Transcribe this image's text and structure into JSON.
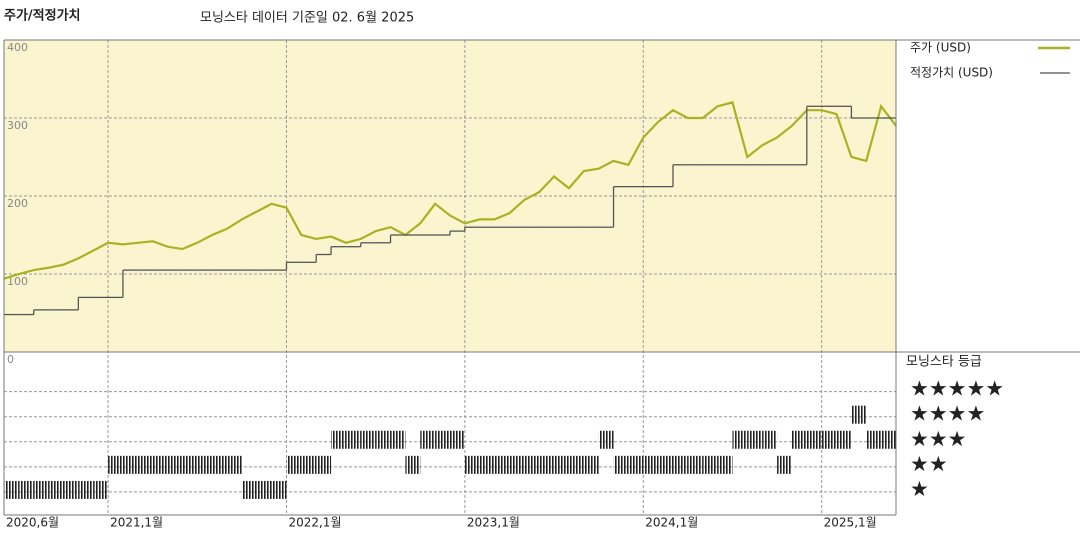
{
  "header": {
    "title": "주가/적정가치",
    "subtitle": "모닝스타 데이터 기준일 02. 6월 2025"
  },
  "chart_data": [
    {
      "type": "line",
      "x": [
        "2020-06",
        "2020-07",
        "2020-08",
        "2020-09",
        "2020-10",
        "2020-11",
        "2020-12",
        "2021-01",
        "2021-02",
        "2021-03",
        "2021-04",
        "2021-05",
        "2021-06",
        "2021-07",
        "2021-08",
        "2021-09",
        "2021-10",
        "2021-11",
        "2021-12",
        "2022-01",
        "2022-02",
        "2022-03",
        "2022-04",
        "2022-05",
        "2022-06",
        "2022-07",
        "2022-08",
        "2022-09",
        "2022-10",
        "2022-11",
        "2022-12",
        "2023-01",
        "2023-02",
        "2023-03",
        "2023-04",
        "2023-05",
        "2023-06",
        "2023-07",
        "2023-08",
        "2023-09",
        "2023-10",
        "2023-11",
        "2023-12",
        "2024-01",
        "2024-02",
        "2024-03",
        "2024-04",
        "2024-05",
        "2024-06",
        "2024-07",
        "2024-08",
        "2024-09",
        "2024-10",
        "2024-11",
        "2024-12",
        "2025-01",
        "2025-02",
        "2025-03",
        "2025-04",
        "2025-05",
        "2025-06"
      ],
      "series": [
        {
          "name": "주가 (USD)",
          "color": "#a9b224",
          "values": [
            94,
            100,
            105,
            108,
            112,
            120,
            130,
            140,
            138,
            140,
            142,
            135,
            132,
            140,
            150,
            158,
            170,
            180,
            190,
            185,
            150,
            145,
            148,
            140,
            145,
            155,
            160,
            150,
            165,
            190,
            175,
            165,
            170,
            170,
            178,
            195,
            205,
            225,
            210,
            232,
            235,
            245,
            240,
            275,
            295,
            310,
            300,
            300,
            315,
            320,
            250,
            265,
            275,
            290,
            310,
            310,
            305,
            250,
            245,
            315,
            290
          ]
        },
        {
          "name": "적정가치 (USD)",
          "color": "#555555",
          "step": true,
          "values": [
            48,
            48,
            54,
            54,
            54,
            70,
            70,
            70,
            105,
            105,
            105,
            105,
            105,
            105,
            105,
            105,
            105,
            105,
            105,
            115,
            115,
            125,
            135,
            135,
            140,
            140,
            150,
            150,
            150,
            150,
            155,
            160,
            160,
            160,
            160,
            160,
            160,
            160,
            160,
            160,
            160,
            212,
            212,
            212,
            212,
            240,
            240,
            240,
            240,
            240,
            240,
            240,
            240,
            240,
            315,
            315,
            315,
            300,
            300,
            300,
            300
          ]
        }
      ],
      "xlim": [
        "2020-06",
        "2025-06"
      ],
      "xticks": [
        {
          "value": "2020-06",
          "label": "2020,6월"
        },
        {
          "value": "2021-01",
          "label": "2021,1월"
        },
        {
          "value": "2022-01",
          "label": "2022,1월"
        },
        {
          "value": "2023-01",
          "label": "2023,1월"
        },
        {
          "value": "2024-01",
          "label": "2024,1월"
        },
        {
          "value": "2025-01",
          "label": "2025,1월"
        }
      ],
      "ylim": [
        0,
        400
      ],
      "yticks": [
        0,
        100,
        200,
        300,
        400
      ],
      "grid": true
    },
    {
      "type": "rating-strip",
      "title": "모닝스타 등급",
      "x": [
        "2020-06",
        "2020-07",
        "2020-08",
        "2020-09",
        "2020-10",
        "2020-11",
        "2020-12",
        "2021-01",
        "2021-02",
        "2021-03",
        "2021-04",
        "2021-05",
        "2021-06",
        "2021-07",
        "2021-08",
        "2021-09",
        "2021-10",
        "2021-11",
        "2021-12",
        "2022-01",
        "2022-02",
        "2022-03",
        "2022-04",
        "2022-05",
        "2022-06",
        "2022-07",
        "2022-08",
        "2022-09",
        "2022-10",
        "2022-11",
        "2022-12",
        "2023-01",
        "2023-02",
        "2023-03",
        "2023-04",
        "2023-05",
        "2023-06",
        "2023-07",
        "2023-08",
        "2023-09",
        "2023-10",
        "2023-11",
        "2023-12",
        "2024-01",
        "2024-02",
        "2024-03",
        "2024-04",
        "2024-05",
        "2024-06",
        "2024-07",
        "2024-08",
        "2024-09",
        "2024-10",
        "2024-11",
        "2024-12",
        "2025-01",
        "2025-02",
        "2025-03",
        "2025-04",
        "2025-05"
      ],
      "values": [
        1,
        1,
        1,
        1,
        1,
        1,
        1,
        2,
        2,
        2,
        2,
        2,
        2,
        2,
        2,
        2,
        1,
        1,
        1,
        2,
        2,
        2,
        3,
        3,
        3,
        3,
        3,
        2,
        3,
        3,
        3,
        2,
        2,
        2,
        2,
        2,
        2,
        2,
        2,
        2,
        3,
        2,
        2,
        2,
        2,
        2,
        2,
        2,
        2,
        3,
        3,
        3,
        2,
        3,
        3,
        3,
        3,
        4,
        3,
        3
      ],
      "color": "#222222",
      "ylim": [
        0,
        6.5
      ],
      "yticks": [
        {
          "value": 5,
          "label": "★★★★★"
        },
        {
          "value": 4,
          "label": "★★★★"
        },
        {
          "value": 3,
          "label": "★★★"
        },
        {
          "value": 2,
          "label": "★★"
        },
        {
          "value": 1,
          "label": "★"
        }
      ]
    }
  ]
}
